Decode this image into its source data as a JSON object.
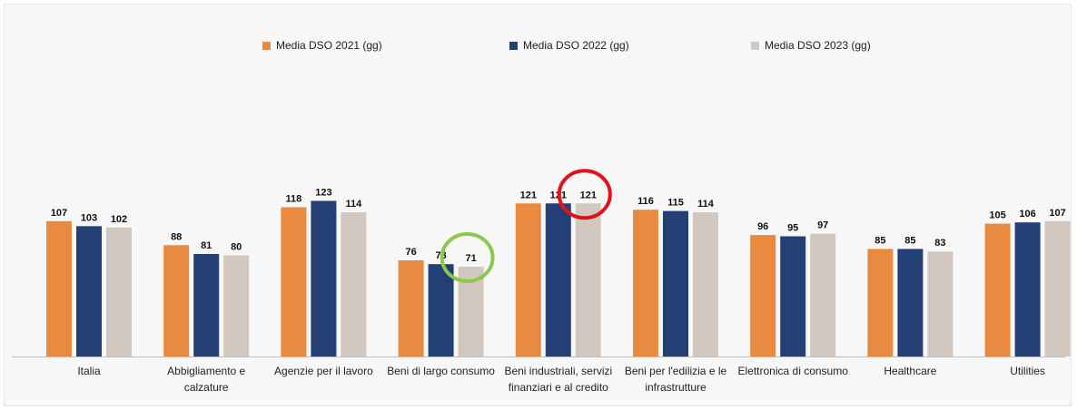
{
  "chart_data": {
    "type": "bar",
    "title": "",
    "xlabel": "",
    "ylabel": "",
    "ylim": [
      0,
      185
    ],
    "grid": false,
    "legend_position": "top",
    "categories": [
      [
        "Italia"
      ],
      [
        "Abbigliamento e",
        "calzature"
      ],
      [
        "Agenzie per il lavoro"
      ],
      [
        "Beni di largo consumo"
      ],
      [
        "Beni industriali, servizi",
        "finanziari e al credito"
      ],
      [
        "Beni per l'edilizia e le",
        "infrastrutture"
      ],
      [
        "Elettronica di consumo"
      ],
      [
        "Healthcare"
      ],
      [
        "Utilities"
      ]
    ],
    "series": [
      {
        "name": "Media DSO 2021 (gg)",
        "color": "#E88A3F",
        "values": [
          107,
          88,
          118,
          76,
          121,
          116,
          96,
          85,
          105
        ]
      },
      {
        "name": "Media DSO 2022 (gg)",
        "color": "#233F73",
        "values": [
          103,
          81,
          123,
          73,
          121,
          115,
          95,
          85,
          106
        ]
      },
      {
        "name": "Media DSO 2023 (gg)",
        "color": "#D2C8BF",
        "values": [
          102,
          80,
          114,
          71,
          121,
          114,
          97,
          83,
          107
        ]
      }
    ],
    "annotations": [
      {
        "type": "circle",
        "color": "#E0121B",
        "category_index": 4,
        "series_index": 2,
        "value": 121
      },
      {
        "type": "circle",
        "color": "#8CC84B",
        "category_index": 3,
        "series_index": 2,
        "value": 71
      }
    ]
  }
}
